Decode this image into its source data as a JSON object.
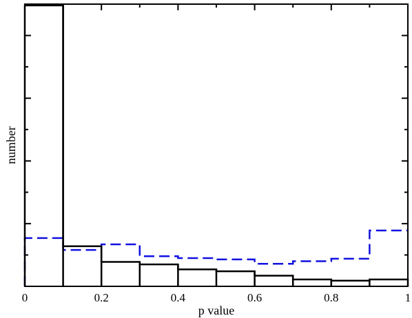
{
  "chart_data": {
    "type": "histogram",
    "xlabel": "p value",
    "ylabel": "number",
    "xlim": [
      0,
      1
    ],
    "ylim": [
      0,
      450
    ],
    "x_ticks": [
      "0",
      "0.2",
      "0.4",
      "0.6",
      "0.8",
      "1"
    ],
    "x_tick_values": [
      0,
      0.2,
      0.4,
      0.6,
      0.8,
      1
    ],
    "y_ticks_labeled": false,
    "y_major_tick_values": [
      0,
      100,
      200,
      300,
      400
    ],
    "y_minor_tick_values": [
      50,
      150,
      250,
      350
    ],
    "bin_edges": [
      0,
      0.1,
      0.2,
      0.3,
      0.4,
      0.5,
      0.6,
      0.7,
      0.8,
      0.9,
      1.0
    ],
    "series": [
      {
        "style": "solid",
        "color": "#000000",
        "values": [
          448,
          64,
          39,
          35,
          27,
          24,
          17,
          11,
          9,
          11
        ]
      },
      {
        "style": "dashed",
        "color": "#1010e0",
        "values": [
          77,
          58,
          67,
          48,
          45,
          43,
          36,
          40,
          44,
          89
        ]
      }
    ],
    "grid": false,
    "legend": "none"
  }
}
